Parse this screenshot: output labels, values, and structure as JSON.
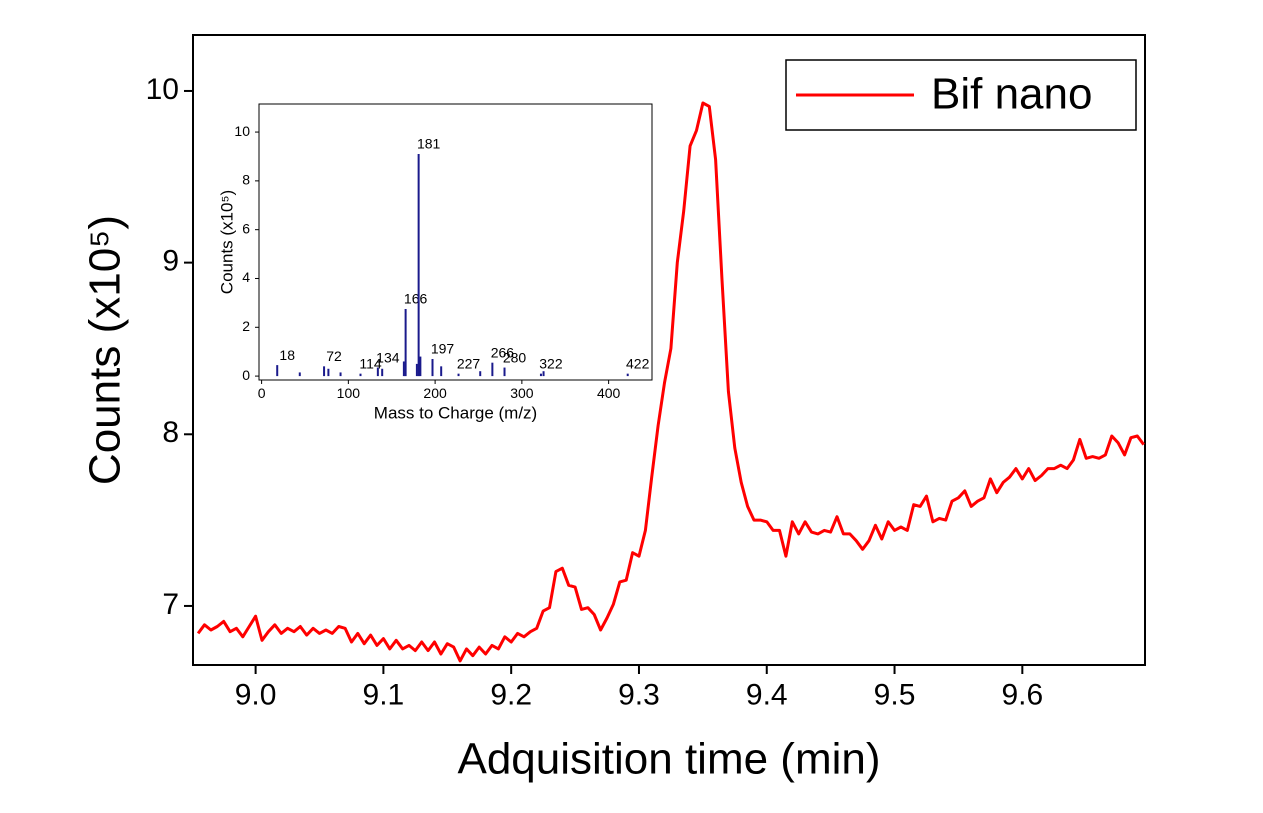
{
  "chart_data": [
    {
      "type": "line",
      "x_label": "Adquisition time (min)",
      "y_label": "Counts (x10⁵)",
      "xlim": [
        8.951,
        9.696
      ],
      "ylim": [
        6.656,
        10.326
      ],
      "xticks": [
        {
          "value": 9,
          "label": "9.0"
        },
        9.1,
        9.2,
        9.3,
        9.4,
        9.5,
        9.6
      ],
      "yticks": [
        7,
        8,
        9,
        10
      ],
      "legend": "top-right",
      "series": [
        {
          "name": "Bif nano",
          "color": "#ff0000",
          "x": [
            8.955,
            8.96,
            8.965,
            8.97,
            8.975,
            8.98,
            8.985,
            8.99,
            8.995,
            9.0,
            9.005,
            9.01,
            9.015,
            9.02,
            9.025,
            9.03,
            9.035,
            9.04,
            9.045,
            9.05,
            9.055,
            9.06,
            9.065,
            9.07,
            9.075,
            9.08,
            9.085,
            9.09,
            9.095,
            9.1,
            9.105,
            9.11,
            9.115,
            9.12,
            9.125,
            9.13,
            9.135,
            9.14,
            9.145,
            9.15,
            9.155,
            9.16,
            9.165,
            9.17,
            9.175,
            9.18,
            9.185,
            9.19,
            9.195,
            9.2,
            9.205,
            9.21,
            9.215,
            9.22,
            9.225,
            9.23,
            9.235,
            9.24,
            9.245,
            9.25,
            9.255,
            9.26,
            9.265,
            9.27,
            9.275,
            9.28,
            9.285,
            9.29,
            9.295,
            9.3,
            9.305,
            9.31,
            9.315,
            9.32,
            9.325,
            9.33,
            9.335,
            9.34,
            9.345,
            9.35,
            9.355,
            9.36,
            9.365,
            9.37,
            9.375,
            9.38,
            9.385,
            9.39,
            9.395,
            9.4,
            9.405,
            9.41,
            9.415,
            9.42,
            9.425,
            9.43,
            9.435,
            9.44,
            9.445,
            9.45,
            9.455,
            9.46,
            9.465,
            9.47,
            9.475,
            9.48,
            9.485,
            9.49,
            9.495,
            9.5,
            9.505,
            9.51,
            9.515,
            9.52,
            9.525,
            9.53,
            9.535,
            9.54,
            9.545,
            9.55,
            9.555,
            9.56,
            9.565,
            9.57,
            9.575,
            9.58,
            9.585,
            9.59,
            9.595,
            9.6,
            9.605,
            9.61,
            9.615,
            9.62,
            9.625,
            9.63,
            9.635,
            9.64,
            9.645,
            9.65,
            9.655,
            9.66,
            9.665,
            9.67,
            9.675,
            9.68,
            9.685,
            9.69,
            9.695
          ],
          "values": [
            6.84,
            6.89,
            6.86,
            6.88,
            6.91,
            6.85,
            6.87,
            6.82,
            6.88,
            6.94,
            6.8,
            6.85,
            6.89,
            6.84,
            6.87,
            6.85,
            6.88,
            6.83,
            6.87,
            6.84,
            6.86,
            6.84,
            6.88,
            6.87,
            6.79,
            6.84,
            6.78,
            6.83,
            6.77,
            6.81,
            6.75,
            6.8,
            6.75,
            6.77,
            6.74,
            6.79,
            6.74,
            6.79,
            6.72,
            6.78,
            6.76,
            6.68,
            6.75,
            6.71,
            6.76,
            6.72,
            6.77,
            6.75,
            6.82,
            6.79,
            6.84,
            6.82,
            6.85,
            6.87,
            6.97,
            6.99,
            7.2,
            7.22,
            7.12,
            7.11,
            6.98,
            6.99,
            6.95,
            6.86,
            6.93,
            7.01,
            7.14,
            7.15,
            7.31,
            7.29,
            7.44,
            7.75,
            8.05,
            8.3,
            8.5,
            9.0,
            9.3,
            9.68,
            9.77,
            9.93,
            9.91,
            9.6,
            8.9,
            8.25,
            7.92,
            7.72,
            7.58,
            7.5,
            7.5,
            7.49,
            7.44,
            7.44,
            7.29,
            7.49,
            7.42,
            7.49,
            7.43,
            7.42,
            7.44,
            7.43,
            7.52,
            7.42,
            7.42,
            7.38,
            7.33,
            7.38,
            7.47,
            7.39,
            7.49,
            7.44,
            7.46,
            7.44,
            7.59,
            7.58,
            7.64,
            7.49,
            7.51,
            7.5,
            7.61,
            7.63,
            7.67,
            7.58,
            7.61,
            7.63,
            7.74,
            7.66,
            7.72,
            7.75,
            7.8,
            7.74,
            7.8,
            7.73,
            7.76,
            7.8,
            7.8,
            7.82,
            7.8,
            7.85,
            7.97,
            7.86,
            7.87,
            7.86,
            7.88,
            7.99,
            7.95,
            7.88,
            7.98,
            7.99,
            7.94
          ]
        }
      ]
    },
    {
      "type": "stem",
      "x_label": "Mass to Charge (m/z)",
      "y_label": "Counts (x10⁵)",
      "xlim": [
        -3,
        450
      ],
      "ylim": [
        -0.16,
        11.15
      ],
      "xticks": [
        0,
        100,
        200,
        300,
        400
      ],
      "yticks": [
        0,
        2,
        4,
        6,
        8,
        10
      ],
      "color": "#1a1a8c",
      "peaks": {
        "x": [
          18,
          72,
          114,
          134,
          166,
          181,
          197,
          227,
          266,
          280,
          322,
          422
        ],
        "values": [
          0.45,
          0.4,
          0.1,
          0.35,
          2.75,
          9.1,
          0.7,
          0.1,
          0.55,
          0.35,
          0.1,
          0.1
        ]
      },
      "minor_peaks": {
        "x": [
          44,
          77,
          91,
          139,
          164,
          179,
          183,
          207,
          252,
          325
        ],
        "values": [
          0.15,
          0.3,
          0.15,
          0.3,
          0.6,
          0.5,
          0.8,
          0.4,
          0.2,
          0.2
        ]
      }
    }
  ]
}
